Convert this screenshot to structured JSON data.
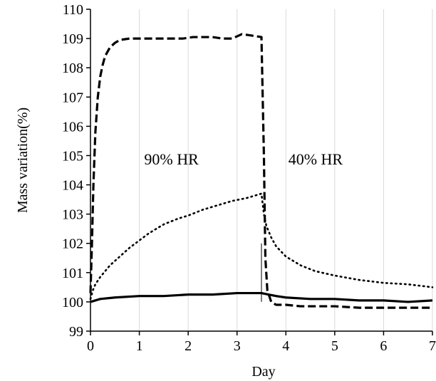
{
  "chart_data": {
    "type": "line",
    "title": "",
    "xlabel": "Day",
    "ylabel": "Mass variation(%)",
    "xlim": [
      0,
      7
    ],
    "ylim": [
      99,
      110
    ],
    "xticks": [
      0,
      1,
      2,
      3,
      4,
      5,
      6,
      7
    ],
    "yticks": [
      99,
      100,
      101,
      102,
      103,
      104,
      105,
      106,
      107,
      108,
      109,
      110
    ],
    "grid": {
      "vertical": true,
      "horizontal": false
    },
    "annotations": [
      {
        "text": "90% HR",
        "x": 0.95,
        "y": 104.7
      },
      {
        "text": "40% HR",
        "x": 2.05,
        "y": 104.7
      }
    ],
    "marker_line": {
      "x": 3.5,
      "y_from": 100.0,
      "y_to": 102.0
    },
    "series": [
      {
        "style": "dashed",
        "x": [
          0,
          0.03,
          0.06,
          0.1,
          0.15,
          0.2,
          0.25,
          0.3,
          0.4,
          0.5,
          0.6,
          0.8,
          1.0,
          1.3,
          1.6,
          1.9,
          2.1,
          2.3,
          2.5,
          2.7,
          2.9,
          3.1,
          3.3,
          3.5,
          3.55,
          3.58,
          3.62,
          3.7,
          3.8,
          4.0,
          4.3,
          4.6,
          5.0,
          5.5,
          6.0,
          6.5,
          7.0
        ],
        "values": [
          100.3,
          102.0,
          104.0,
          105.8,
          107.0,
          107.7,
          108.1,
          108.4,
          108.7,
          108.85,
          108.95,
          109.0,
          109.0,
          109.0,
          109.0,
          109.0,
          109.05,
          109.05,
          109.05,
          109.0,
          109.0,
          109.15,
          109.1,
          109.05,
          105.0,
          101.5,
          100.4,
          100.0,
          99.9,
          99.9,
          99.85,
          99.85,
          99.85,
          99.8,
          99.8,
          99.8,
          99.8
        ]
      },
      {
        "style": "dotted",
        "x": [
          0,
          0.05,
          0.1,
          0.2,
          0.3,
          0.4,
          0.5,
          0.6,
          0.8,
          1.0,
          1.2,
          1.5,
          1.8,
          2.0,
          2.3,
          2.6,
          2.9,
          3.2,
          3.5,
          3.55,
          3.6,
          3.7,
          3.8,
          4.0,
          4.3,
          4.6,
          5.0,
          5.5,
          6.0,
          6.5,
          7.0
        ],
        "values": [
          100.1,
          100.4,
          100.6,
          100.85,
          101.05,
          101.25,
          101.4,
          101.55,
          101.85,
          102.1,
          102.35,
          102.65,
          102.85,
          102.95,
          103.15,
          103.3,
          103.45,
          103.55,
          103.7,
          103.0,
          102.6,
          102.2,
          101.9,
          101.55,
          101.25,
          101.05,
          100.9,
          100.75,
          100.65,
          100.6,
          100.5
        ]
      },
      {
        "style": "solid",
        "x": [
          0,
          0.2,
          0.5,
          1.0,
          1.5,
          2.0,
          2.5,
          3.0,
          3.3,
          3.5,
          3.8,
          4.0,
          4.5,
          5.0,
          5.5,
          6.0,
          6.5,
          7.0
        ],
        "values": [
          100.0,
          100.1,
          100.15,
          100.2,
          100.2,
          100.25,
          100.25,
          100.3,
          100.3,
          100.3,
          100.2,
          100.15,
          100.1,
          100.1,
          100.05,
          100.05,
          100.0,
          100.05
        ]
      }
    ]
  }
}
